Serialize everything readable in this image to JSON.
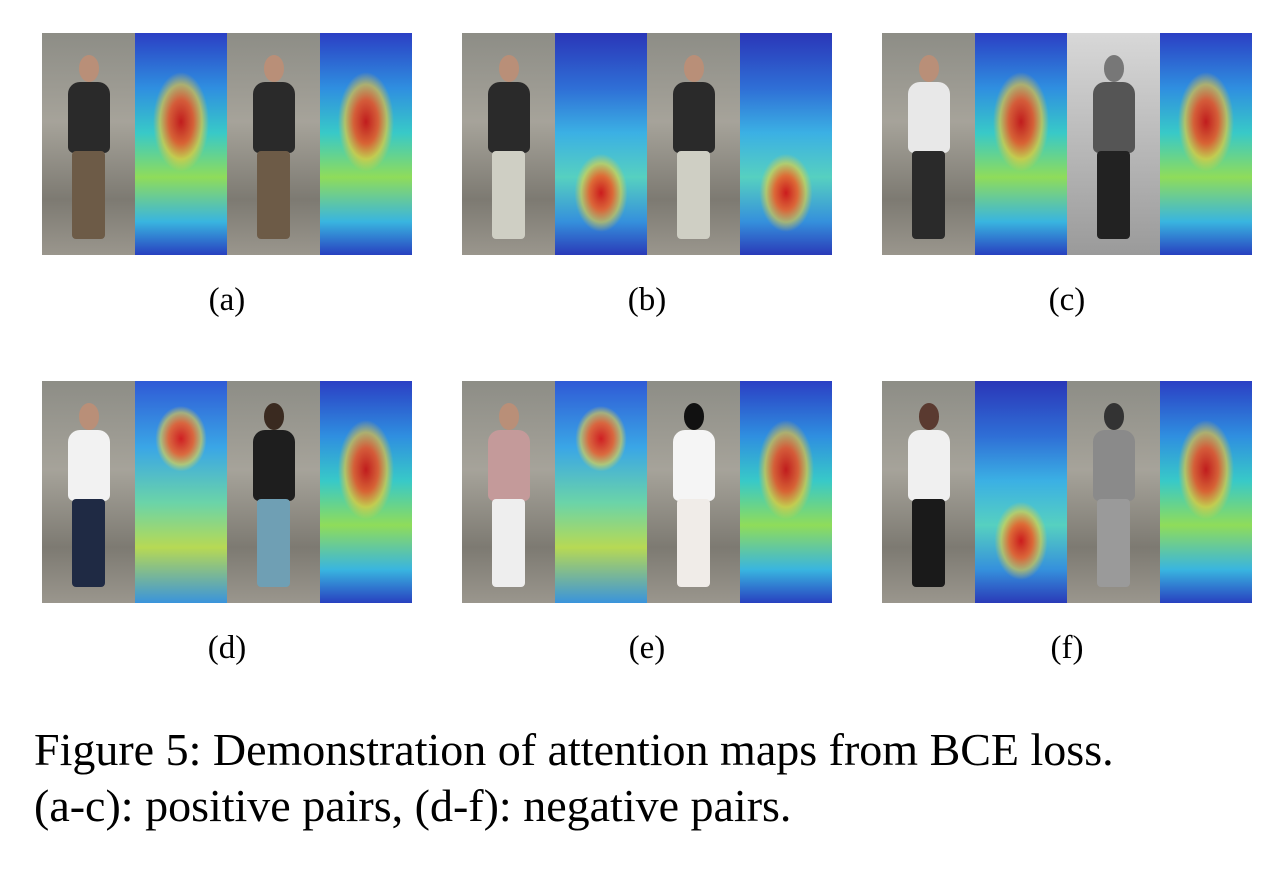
{
  "figure": {
    "panels": [
      {
        "label": "(a)",
        "pair": "positive"
      },
      {
        "label": "(b)",
        "pair": "positive"
      },
      {
        "label": "(c)",
        "pair": "positive"
      },
      {
        "label": "(d)",
        "pair": "negative"
      },
      {
        "label": "(e)",
        "pair": "negative"
      },
      {
        "label": "(f)",
        "pair": "negative"
      }
    ],
    "caption_line1": "Figure 5: Demonstration of attention maps from BCE loss.",
    "caption_line2": "(a-c): positive pairs, (d-f): negative pairs."
  }
}
